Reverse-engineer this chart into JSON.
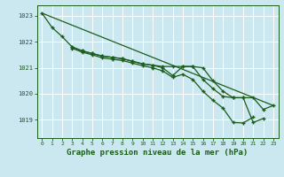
{
  "title": "Graphe pression niveau de la mer (hPa)",
  "bg_color": "#cbe8f0",
  "grid_color": "#ffffff",
  "line_color": "#1a5c1a",
  "xlim": [
    -0.5,
    23.5
  ],
  "ylim": [
    1018.3,
    1023.4
  ],
  "yticks": [
    1019,
    1020,
    1021,
    1022,
    1023
  ],
  "xticks": [
    0,
    1,
    2,
    3,
    4,
    5,
    6,
    7,
    8,
    9,
    10,
    11,
    12,
    13,
    14,
    15,
    16,
    17,
    18,
    19,
    20,
    21,
    22,
    23
  ],
  "line_main": [
    1023.1,
    1022.55,
    1022.2,
    1021.8,
    1021.65,
    1021.55,
    1021.45,
    1021.4,
    1021.35,
    1021.25,
    1021.15,
    1021.1,
    1021.05,
    1021.05,
    1021.05,
    1021.05,
    1021.0,
    1020.5,
    1020.1,
    1019.85,
    1019.85,
    1019.85,
    1019.4,
    1019.55
  ],
  "line_obs1": [
    null,
    null,
    null,
    1021.8,
    1021.65,
    1021.55,
    1021.45,
    1021.4,
    1021.35,
    1021.25,
    1021.15,
    1021.1,
    1021.0,
    1020.7,
    1021.05,
    1021.05,
    1020.55,
    1020.2,
    1019.9,
    1019.85,
    1019.85,
    1018.9,
    1019.05,
    null
  ],
  "line_obs2": [
    null,
    null,
    null,
    1021.75,
    1021.6,
    1021.5,
    1021.38,
    1021.33,
    1021.28,
    1021.18,
    1021.08,
    1021.0,
    1020.88,
    1020.63,
    1020.75,
    1020.55,
    1020.1,
    1019.75,
    1019.45,
    1018.9,
    1018.88,
    1019.1,
    null,
    null
  ],
  "line_straight": [
    [
      0,
      23
    ],
    [
      1023.1,
      1019.55
    ]
  ]
}
